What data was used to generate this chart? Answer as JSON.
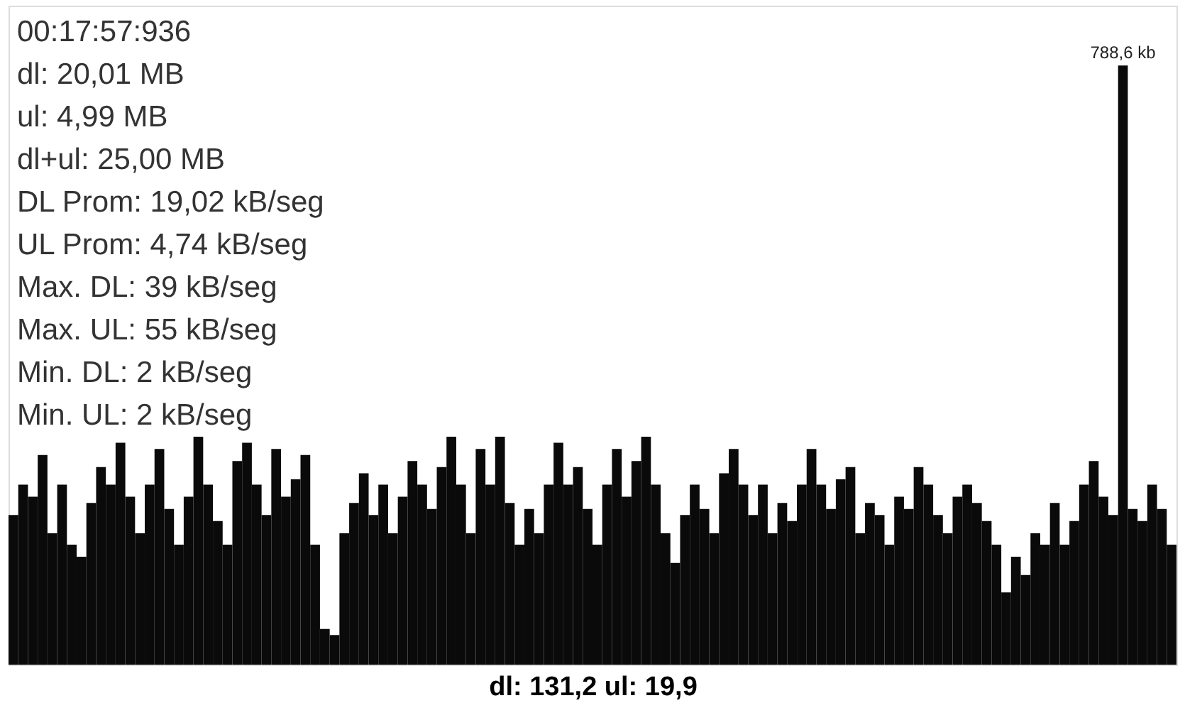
{
  "chart_data": {
    "type": "bar",
    "tick_labels": false,
    "grid": false,
    "legend": false,
    "xlabel": "dl: 131,2 ul: 19,9",
    "annotations": [
      "00:17:57:936",
      "dl: 20,01 MB",
      "ul: 4,99 MB",
      "dl+ul: 25,00 MB",
      "DL Prom: 19,02 kB/seg",
      "UL Prom: 4,74 kB/seg",
      "Max. DL: 39 kB/seg",
      "Max. UL: 55 kB/seg",
      "Min. DL: 2 kB/seg",
      "Min. UL: 2 kB/seg"
    ],
    "categories": [
      null,
      null,
      null,
      null,
      null,
      null,
      null,
      null,
      null,
      null,
      null,
      null,
      null,
      null,
      null,
      null,
      null,
      null,
      null,
      null,
      null,
      null,
      null,
      null,
      null,
      null,
      null,
      null,
      null,
      null,
      null,
      null,
      null,
      null,
      null,
      null,
      null,
      null,
      null,
      null,
      null,
      null,
      null,
      null,
      null,
      null,
      null,
      null,
      null,
      null,
      null,
      null,
      null,
      null,
      null,
      null,
      null,
      null,
      null,
      null,
      null,
      null,
      null,
      null,
      null,
      null,
      null,
      null,
      null,
      null,
      null,
      null,
      null,
      null,
      null,
      null,
      null,
      null,
      null,
      null,
      null,
      null,
      null,
      null,
      null,
      null,
      null,
      null,
      null,
      null,
      null,
      null,
      null,
      null,
      null,
      null,
      null,
      null,
      null,
      null,
      null,
      null,
      null,
      null,
      null,
      null,
      null,
      null,
      null,
      null,
      null,
      null,
      null,
      null,
      null,
      null,
      null,
      null,
      null,
      null
    ],
    "series": [
      {
        "color": "#0a0a0a",
        "values": [
          197,
          237,
          221,
          276,
          173,
          237,
          158,
          142,
          213,
          260,
          237,
          292,
          221,
          173,
          237,
          284,
          205,
          158,
          221,
          300,
          237,
          189,
          158,
          268,
          292,
          237,
          197,
          284,
          221,
          244,
          276,
          158,
          47,
          39,
          173,
          213,
          252,
          197,
          237,
          173,
          221,
          268,
          237,
          205,
          260,
          300,
          237,
          173,
          284,
          237,
          300,
          213,
          158,
          205,
          173,
          237,
          292,
          237,
          260,
          205,
          158,
          237,
          284,
          221,
          268,
          300,
          237,
          173,
          134,
          197,
          237,
          205,
          173,
          252,
          284,
          237,
          197,
          237,
          173,
          213,
          189,
          237,
          284,
          237,
          205,
          244,
          260,
          173,
          213,
          197,
          158,
          221,
          205,
          260,
          237,
          197,
          173,
          221,
          237,
          213,
          189,
          158,
          95,
          142,
          118,
          173,
          158,
          213,
          158,
          189,
          237,
          268,
          221,
          197,
          788.6,
          205,
          189,
          237,
          205,
          158
        ],
        "value_labels": [
          null,
          null,
          null,
          null,
          null,
          null,
          null,
          null,
          null,
          null,
          null,
          null,
          null,
          null,
          null,
          null,
          null,
          null,
          null,
          null,
          null,
          null,
          null,
          null,
          null,
          null,
          null,
          null,
          null,
          null,
          null,
          null,
          null,
          null,
          null,
          null,
          null,
          null,
          null,
          null,
          null,
          null,
          null,
          null,
          null,
          null,
          null,
          null,
          null,
          null,
          null,
          null,
          null,
          null,
          null,
          null,
          null,
          null,
          null,
          null,
          null,
          null,
          null,
          null,
          null,
          null,
          null,
          null,
          null,
          null,
          null,
          null,
          null,
          null,
          null,
          null,
          null,
          null,
          null,
          null,
          null,
          null,
          null,
          null,
          null,
          null,
          null,
          null,
          null,
          null,
          null,
          null,
          null,
          null,
          null,
          null,
          null,
          null,
          null,
          null,
          null,
          null,
          null,
          null,
          null,
          null,
          null,
          null,
          null,
          null,
          null,
          null,
          null,
          null,
          "788,6 kb",
          null,
          null,
          null,
          null,
          null
        ]
      }
    ]
  }
}
